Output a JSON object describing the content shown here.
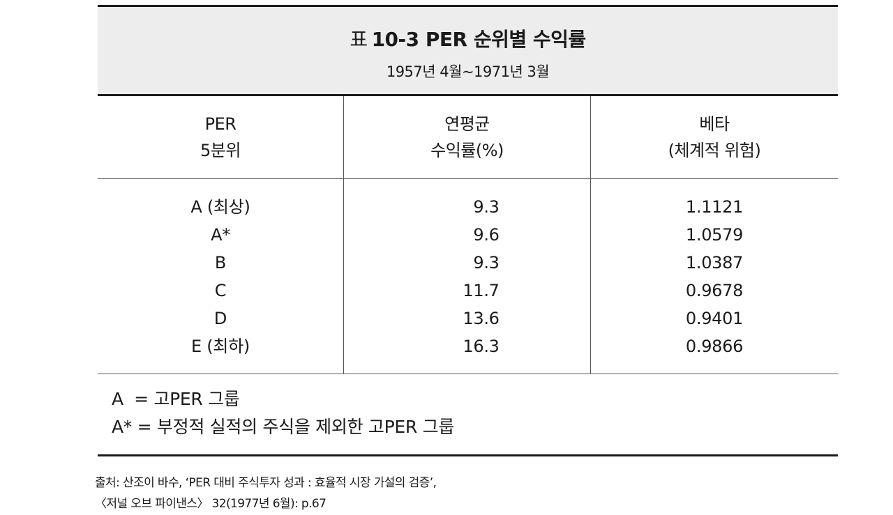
{
  "table": {
    "title_prefix": "표",
    "title": "10-3  PER 순위별 수익률",
    "subtitle": "1957년 4월~1971년 3월",
    "headers": [
      {
        "line1": "PER",
        "line2": "5분위"
      },
      {
        "line1": "연평균",
        "line2": "수익률(%)"
      },
      {
        "line1": "베타",
        "line2": "(체계적 위험)"
      }
    ],
    "rows": [
      {
        "quintile": "A (최상)",
        "return": "9.3",
        "beta": "1.1121"
      },
      {
        "quintile": "A*",
        "return": "9.6",
        "beta": "1.0579"
      },
      {
        "quintile": "B",
        "return": "9.3",
        "beta": "1.0387"
      },
      {
        "quintile": "C",
        "return": "11.7",
        "beta": "0.9678"
      },
      {
        "quintile": "D",
        "return": "13.6",
        "beta": "0.9401"
      },
      {
        "quintile": "E (최하)",
        "return": "16.3",
        "beta": "0.9866"
      }
    ],
    "notes": [
      "A  = 고PER 그룹",
      "A* = 부정적 실적의 주식을 제외한 고PER 그룹"
    ]
  },
  "source": {
    "line1": "출처: 산조이 바수, ‘PER 대비 주식투자 성과 : 효율적 시장 가설의 검증’,",
    "line2": "〈저널 오브 파이낸스〉 32(1977년 6월): p.67"
  }
}
